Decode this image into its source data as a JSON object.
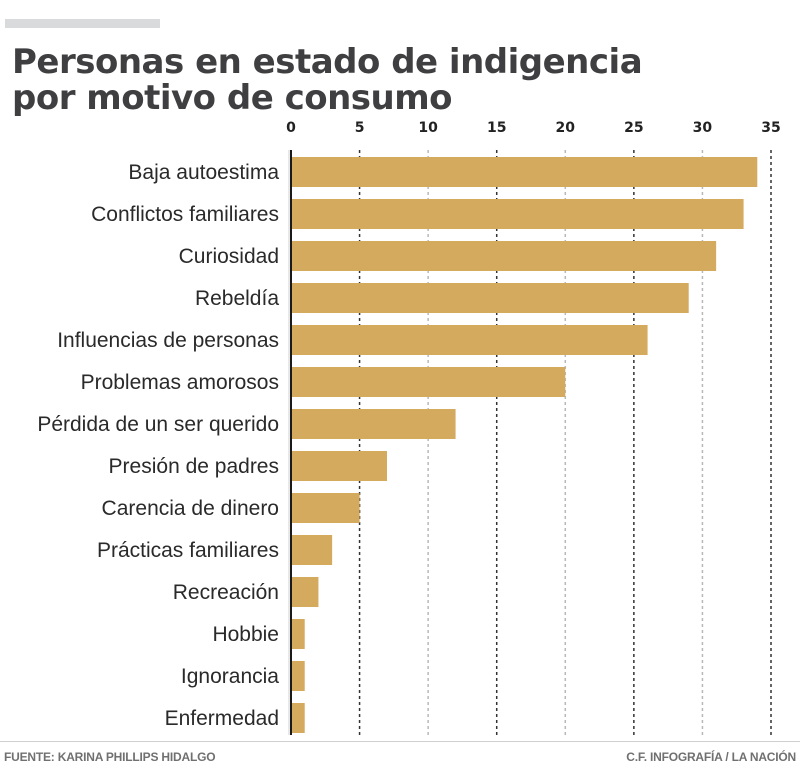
{
  "header": {
    "title_line1": "Personas en estado de indigencia",
    "title_line2": "por motivo de consumo"
  },
  "footer": {
    "source": "FUENTE: KARINA PHILLIPS HIDALGO",
    "credit": "C.F. INFOGRAFÍA / LA NACIÓN"
  },
  "colors": {
    "bar": "#d4aa5e",
    "axis": "#1a1a1a",
    "grid_major": "#333333",
    "grid_minor": "#b8b8b8"
  },
  "chart_data": {
    "type": "bar",
    "orientation": "horizontal",
    "title": "Personas en estado de indigencia por motivo de consumo",
    "xlabel": "",
    "ylabel": "",
    "categories": [
      "Baja autoestima",
      "Conflictos familiares",
      "Curiosidad",
      "Rebeldía",
      "Influencias de personas",
      "Problemas amorosos",
      "Pérdida de un ser querido",
      "Presión de padres",
      "Carencia de dinero",
      "Prácticas familiares",
      "Recreación",
      "Hobbie",
      "Ignorancia",
      "Enfermedad"
    ],
    "values": [
      34,
      33,
      31,
      29,
      26,
      20,
      12,
      7,
      5,
      3,
      2,
      1,
      1,
      1
    ],
    "xlim": [
      0,
      35
    ],
    "ticks": [
      0,
      5,
      10,
      15,
      20,
      25,
      30,
      35
    ],
    "tick_labels": [
      "0",
      "5",
      "10",
      "15",
      "20",
      "25",
      "30",
      "35"
    ],
    "axis_position": "top",
    "grid": true,
    "grid_style": "dashed vertical",
    "legend": "none"
  }
}
